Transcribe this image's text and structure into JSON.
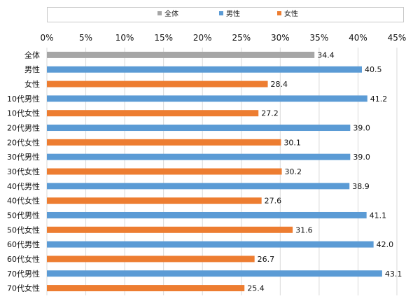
{
  "chart_data": {
    "type": "bar",
    "orientation": "horizontal",
    "xlim": [
      0,
      45
    ],
    "x_ticks": [
      "0%",
      "5%",
      "10%",
      "15%",
      "20%",
      "25%",
      "30%",
      "35%",
      "40%",
      "45%"
    ],
    "grid": true,
    "legend_placement": "top",
    "legend": [
      {
        "name": "全体",
        "color": "#a6a6a6"
      },
      {
        "name": "男性",
        "color": "#5b9bd5"
      },
      {
        "name": "女性",
        "color": "#ed7d31"
      }
    ],
    "categories": [
      "全体",
      "男性",
      "女性",
      "10代男性",
      "10代女性",
      "20代男性",
      "20代女性",
      "30代男性",
      "30代女性",
      "40代男性",
      "40代女性",
      "50代男性",
      "50代女性",
      "60代男性",
      "60代女性",
      "70代男性",
      "70代女性"
    ],
    "values": [
      34.4,
      40.5,
      28.4,
      41.2,
      27.2,
      39.0,
      30.1,
      39.0,
      30.2,
      38.9,
      27.6,
      41.1,
      31.6,
      42.0,
      26.7,
      43.1,
      25.4
    ],
    "value_labels": [
      "34.4",
      "40.5",
      "28.4",
      "41.2",
      "27.2",
      "39.0",
      "30.1",
      "39.0",
      "30.2",
      "38.9",
      "27.6",
      "41.1",
      "31.6",
      "42.0",
      "26.7",
      "43.1",
      "25.4"
    ],
    "bar_groups": [
      "全体",
      "男性",
      "女性",
      "男性",
      "女性",
      "男性",
      "女性",
      "男性",
      "女性",
      "男性",
      "女性",
      "男性",
      "女性",
      "男性",
      "女性",
      "男性",
      "女性"
    ]
  }
}
